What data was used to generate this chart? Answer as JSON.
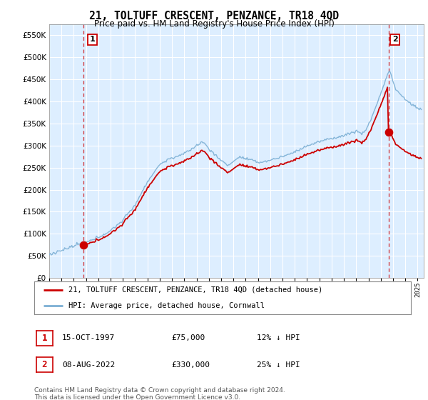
{
  "title": "21, TOLTUFF CRESCENT, PENZANCE, TR18 4QD",
  "subtitle": "Price paid vs. HM Land Registry's House Price Index (HPI)",
  "legend_line1": "21, TOLTUFF CRESCENT, PENZANCE, TR18 4QD (detached house)",
  "legend_line2": "HPI: Average price, detached house, Cornwall",
  "annotation1_label": "1",
  "annotation1_date": "15-OCT-1997",
  "annotation1_price": "£75,000",
  "annotation1_hpi": "12% ↓ HPI",
  "annotation2_label": "2",
  "annotation2_date": "08-AUG-2022",
  "annotation2_price": "£330,000",
  "annotation2_hpi": "25% ↓ HPI",
  "footer": "Contains HM Land Registry data © Crown copyright and database right 2024.\nThis data is licensed under the Open Government Licence v3.0.",
  "ylim": [
    0,
    575000
  ],
  "yticks": [
    0,
    50000,
    100000,
    150000,
    200000,
    250000,
    300000,
    350000,
    400000,
    450000,
    500000,
    550000
  ],
  "hpi_color": "#7bafd4",
  "price_color": "#cc0000",
  "dot_color": "#cc0000",
  "vline_color": "#cc0000",
  "plot_bg_color": "#ddeeff",
  "background_color": "#ffffff",
  "grid_color": "#ffffff"
}
